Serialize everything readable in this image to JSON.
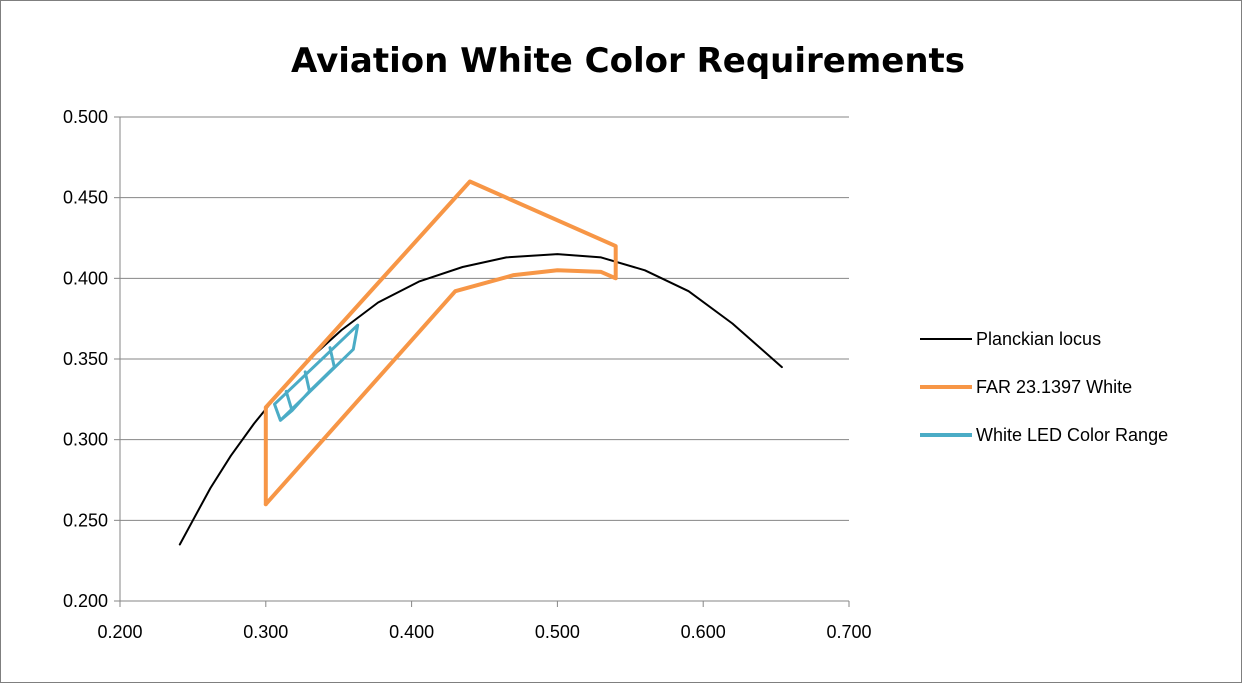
{
  "chart_data": {
    "type": "scatter",
    "title": "Aviation White Color Requirements",
    "xlabel": "",
    "ylabel": "",
    "xlim": [
      0.2,
      0.7
    ],
    "ylim": [
      0.2,
      0.5
    ],
    "x_ticks": [
      "0.200",
      "0.300",
      "0.400",
      "0.500",
      "0.600",
      "0.700"
    ],
    "y_ticks": [
      "0.200",
      "0.250",
      "0.300",
      "0.350",
      "0.400",
      "0.450",
      "0.500"
    ],
    "grid": "horizontal",
    "legend_position": "right",
    "series": [
      {
        "name": "Planckian locus",
        "color": "#000000",
        "points": [
          [
            0.241,
            0.235
          ],
          [
            0.25,
            0.25
          ],
          [
            0.262,
            0.27
          ],
          [
            0.276,
            0.29
          ],
          [
            0.292,
            0.31
          ],
          [
            0.31,
            0.33
          ],
          [
            0.33,
            0.35
          ],
          [
            0.352,
            0.368
          ],
          [
            0.377,
            0.385
          ],
          [
            0.405,
            0.398
          ],
          [
            0.435,
            0.407
          ],
          [
            0.465,
            0.413
          ],
          [
            0.5,
            0.415
          ],
          [
            0.53,
            0.413
          ],
          [
            0.56,
            0.405
          ],
          [
            0.59,
            0.392
          ],
          [
            0.62,
            0.372
          ],
          [
            0.654,
            0.345
          ]
        ]
      },
      {
        "name": "FAR 23.1397 White",
        "color": "#f79646",
        "points": [
          [
            0.3,
            0.26
          ],
          [
            0.3,
            0.32
          ],
          [
            0.44,
            0.46
          ],
          [
            0.54,
            0.42
          ],
          [
            0.54,
            0.4
          ],
          [
            0.53,
            0.404
          ],
          [
            0.5,
            0.405
          ],
          [
            0.47,
            0.402
          ],
          [
            0.43,
            0.392
          ],
          [
            0.3,
            0.26
          ]
        ]
      },
      {
        "name": "White LED Color Range",
        "color": "#4bacc6",
        "points": [
          [
            0.31,
            0.312
          ],
          [
            0.36,
            0.356
          ],
          [
            0.363,
            0.371
          ],
          [
            0.306,
            0.322
          ],
          [
            0.31,
            0.312
          ],
          [
            0.318,
            0.318
          ],
          [
            0.314,
            0.33
          ],
          [
            0.318,
            0.318
          ],
          [
            0.33,
            0.33
          ],
          [
            0.327,
            0.342
          ],
          [
            0.33,
            0.33
          ],
          [
            0.347,
            0.345
          ],
          [
            0.344,
            0.357
          ],
          [
            0.347,
            0.345
          ]
        ]
      }
    ]
  }
}
